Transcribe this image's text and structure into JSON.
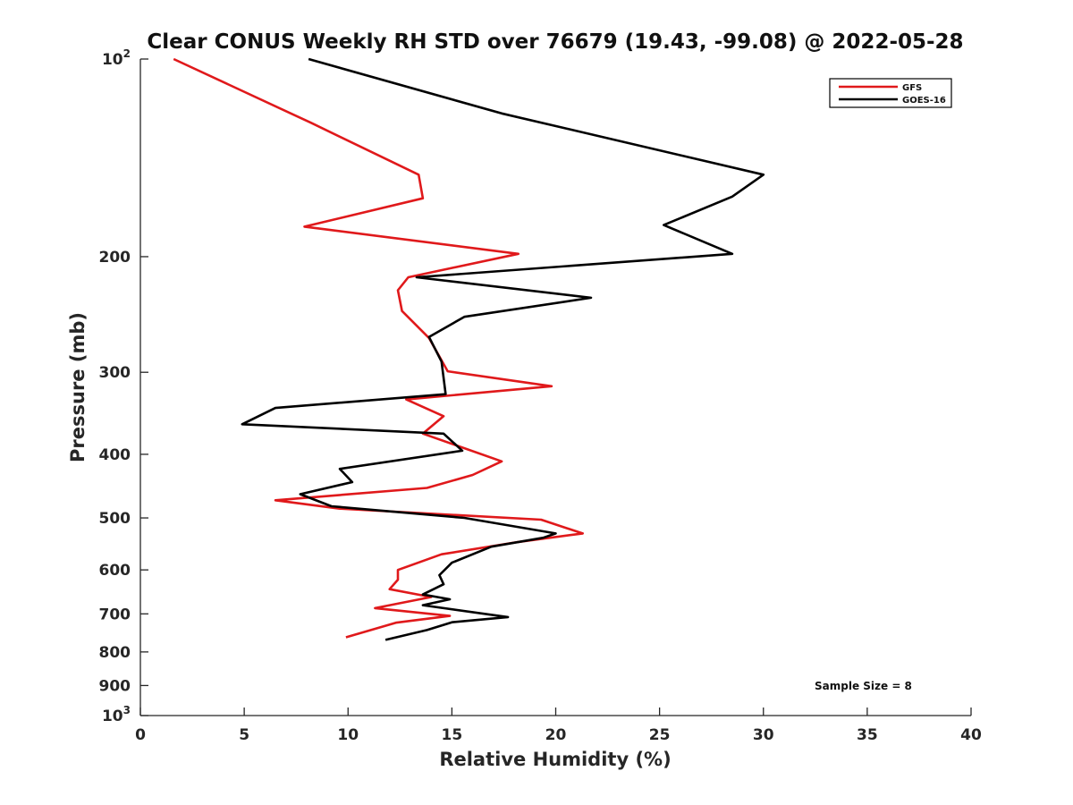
{
  "chart_data": {
    "type": "line",
    "title": "Clear CONUS Weekly RH STD over 76679 (19.43, -99.08) @ 2022-05-28",
    "xlabel": "Relative Humidity (%)",
    "ylabel": "Pressure (mb)",
    "xlim": [
      0,
      40
    ],
    "ylim": [
      100,
      1000
    ],
    "y_scale": "log",
    "y_reversed": true,
    "x_ticks": [
      "0",
      "5",
      "10",
      "15",
      "20",
      "25",
      "30",
      "35",
      "40"
    ],
    "y_ticks": [
      {
        "value": 100,
        "label": "10",
        "sup": "2"
      },
      {
        "value": 200,
        "label": "200",
        "sup": ""
      },
      {
        "value": 300,
        "label": "300",
        "sup": ""
      },
      {
        "value": 400,
        "label": "400",
        "sup": ""
      },
      {
        "value": 500,
        "label": "500",
        "sup": ""
      },
      {
        "value": 600,
        "label": "600",
        "sup": ""
      },
      {
        "value": 700,
        "label": "700",
        "sup": ""
      },
      {
        "value": 800,
        "label": "800",
        "sup": ""
      },
      {
        "value": 900,
        "label": "900",
        "sup": ""
      },
      {
        "value": 1000,
        "label": "10",
        "sup": "3"
      }
    ],
    "grid": false,
    "legend_position": "top-right",
    "annotation": "Sample Size = 8",
    "series": [
      {
        "name": "GFS",
        "color": "#e0191b",
        "points": [
          [
            1.6,
            100
          ],
          [
            8.2,
            125
          ],
          [
            13.4,
            150
          ],
          [
            13.6,
            163
          ],
          [
            7.9,
            180
          ],
          [
            18.2,
            198
          ],
          [
            12.9,
            215
          ],
          [
            12.4,
            225
          ],
          [
            12.6,
            242
          ],
          [
            13.9,
            266
          ],
          [
            14.8,
            299
          ],
          [
            19.8,
            315
          ],
          [
            12.8,
            330
          ],
          [
            14.6,
            350
          ],
          [
            13.6,
            372
          ],
          [
            17.4,
            410
          ],
          [
            16.0,
            430
          ],
          [
            13.8,
            450
          ],
          [
            6.5,
            470
          ],
          [
            9.6,
            484
          ],
          [
            19.3,
            503
          ],
          [
            21.3,
            528
          ],
          [
            18.2,
            544
          ],
          [
            14.5,
            568
          ],
          [
            12.4,
            600
          ],
          [
            12.4,
            621
          ],
          [
            12.0,
            642
          ],
          [
            14.0,
            660
          ],
          [
            11.3,
            686
          ],
          [
            14.9,
            705
          ],
          [
            12.3,
            722
          ],
          [
            9.9,
            760
          ]
        ]
      },
      {
        "name": "GOES-16",
        "color": "#000000",
        "points": [
          [
            8.1,
            100
          ],
          [
            17.4,
            121
          ],
          [
            30.0,
            150
          ],
          [
            28.5,
            162
          ],
          [
            25.2,
            179
          ],
          [
            28.5,
            198
          ],
          [
            13.3,
            215
          ],
          [
            21.7,
            231
          ],
          [
            15.6,
            247
          ],
          [
            13.9,
            265
          ],
          [
            14.5,
            289
          ],
          [
            14.7,
            324
          ],
          [
            6.5,
            340
          ],
          [
            4.9,
            360
          ],
          [
            14.6,
            372
          ],
          [
            15.5,
            395
          ],
          [
            9.6,
            421
          ],
          [
            10.2,
            441
          ],
          [
            7.7,
            460
          ],
          [
            9.2,
            480
          ],
          [
            15.6,
            500
          ],
          [
            20.0,
            528
          ],
          [
            19.4,
            536
          ],
          [
            16.9,
            553
          ],
          [
            15.0,
            585
          ],
          [
            14.4,
            611
          ],
          [
            14.6,
            631
          ],
          [
            13.6,
            654
          ],
          [
            14.9,
            665
          ],
          [
            13.6,
            679
          ],
          [
            17.7,
            708
          ],
          [
            15.0,
            721
          ],
          [
            13.8,
            741
          ],
          [
            11.8,
            767
          ]
        ]
      }
    ]
  }
}
